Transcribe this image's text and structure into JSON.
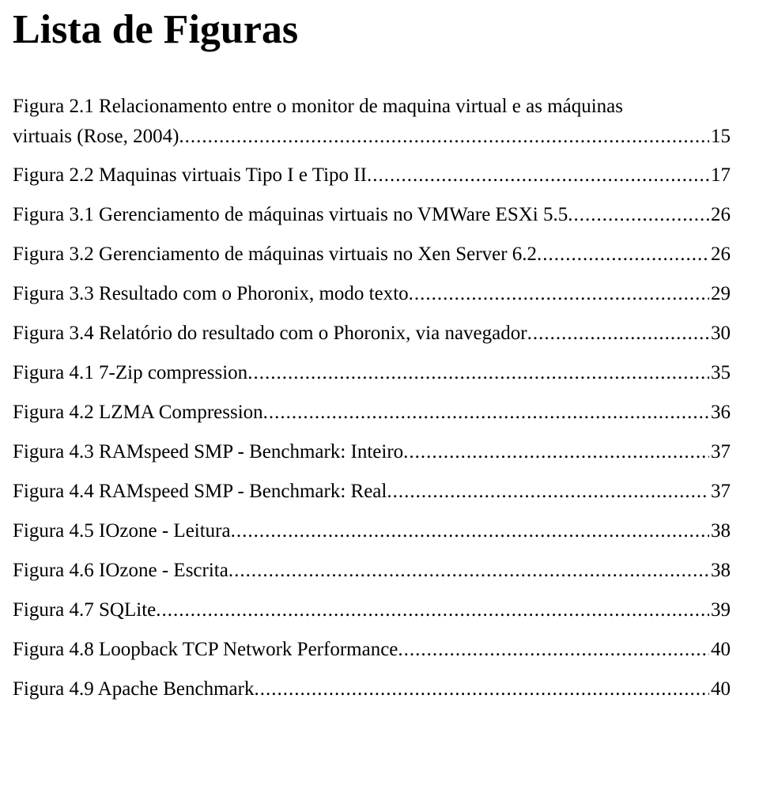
{
  "title": "Lista de Figuras",
  "font_family": "Times New Roman",
  "text_color": "#000000",
  "background_color": "#ffffff",
  "entries": [
    {
      "label_line1": "Figura 2.1 Relacionamento entre o monitor de maquina virtual e as máquinas",
      "label_line2": "virtuais (Rose, 2004)",
      "page": "15"
    },
    {
      "label_line1": "Figura 2.2 Maquinas virtuais Tipo I e Tipo II",
      "page": "17"
    },
    {
      "label_line1": "Figura 3.1 Gerenciamento de máquinas virtuais no VMWare ESXi 5.5",
      "page": "26"
    },
    {
      "label_line1": "Figura 3.2 Gerenciamento de máquinas virtuais no Xen Server 6.2",
      "page": "26"
    },
    {
      "label_line1": "Figura 3.3 Resultado com o Phoronix, modo texto",
      "page": "29"
    },
    {
      "label_line1": "Figura 3.4 Relatório do resultado com o Phoronix, via navegador",
      "page": "30"
    },
    {
      "label_line1": "Figura 4.1 7-Zip compression",
      "page": "35"
    },
    {
      "label_line1": "Figura 4.2 LZMA Compression",
      "page": "36"
    },
    {
      "label_line1": "Figura 4.3 RAMspeed SMP - Benchmark: Inteiro",
      "page": "37"
    },
    {
      "label_line1": "Figura 4.4 RAMspeed SMP - Benchmark: Real",
      "page": "37"
    },
    {
      "label_line1": "Figura 4.5 IOzone - Leitura",
      "page": "38"
    },
    {
      "label_line1": "Figura 4.6 IOzone - Escrita",
      "page": "38"
    },
    {
      "label_line1": "Figura 4.7 SQLite",
      "page": "39"
    },
    {
      "label_line1": "Figura 4.8 Loopback TCP Network Performance",
      "page": "40"
    },
    {
      "label_line1": "Figura 4.9 Apache Benchmark",
      "page": "40"
    }
  ],
  "leader_char": "."
}
